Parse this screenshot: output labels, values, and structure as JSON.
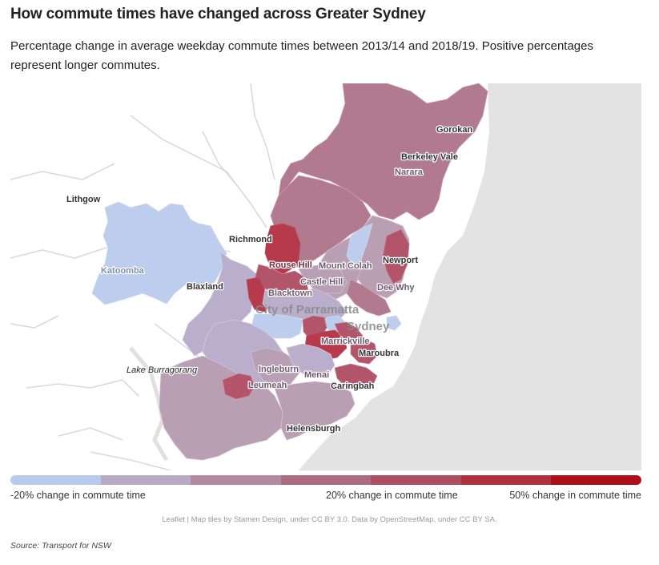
{
  "header": {
    "title": "How commute times have changed across Greater Sydney",
    "subtitle": "Percentage change in average weekday commute times between 2013/14 and 2018/19. Positive percentages represent longer commutes."
  },
  "map": {
    "places": {
      "lithgow": "Lithgow",
      "katoomba": "Katoomba",
      "blaxland": "Blaxland",
      "richmond": "Richmond",
      "rouse_hill": "Rouse Hill",
      "mount_colah": "Mount Colah",
      "castle_hill": "Castle Hill",
      "blacktown": "Blacktown",
      "city_of_parramatta": "City of Parramatta",
      "sydney": "Sydney",
      "newport": "Newport",
      "dee_why": "Dee Why",
      "marrickville": "Marrickville",
      "maroubra": "Maroubra",
      "lake_burragorang": "Lake Burragorang",
      "ingleburn": "Ingleburn",
      "menai": "Menai",
      "leumeah": "Leumeah",
      "caringbah": "Caringbah",
      "helensburgh": "Helensburgh",
      "gorokan": "Gorokan",
      "berkeley_vale": "Berkeley Vale",
      "narara": "Narara"
    },
    "colors": {
      "ocean": "#e3e3e3",
      "band_1": "#bccdee",
      "band_2": "#b9afcc",
      "band_3": "#b99fb4",
      "band_4": "#b27a8e",
      "band_5": "#b2546a",
      "band_6": "#b73a4a"
    }
  },
  "legend": {
    "colors": [
      "#b7cbef",
      "#b8a9c5",
      "#b48aa0",
      "#ad6b81",
      "#ac4d60",
      "#b0303c",
      "#ae0f19"
    ],
    "labels": {
      "low": "-20% change in commute time",
      "mid": "20% change in commute time",
      "high": "50% change in commute time"
    }
  },
  "attribution": "Leaflet | Map tiles by Stamen Design, under CC BY 3.0. Data by OpenStreetMap, under CC BY SA.",
  "source": "Source: Transport for NSW"
}
